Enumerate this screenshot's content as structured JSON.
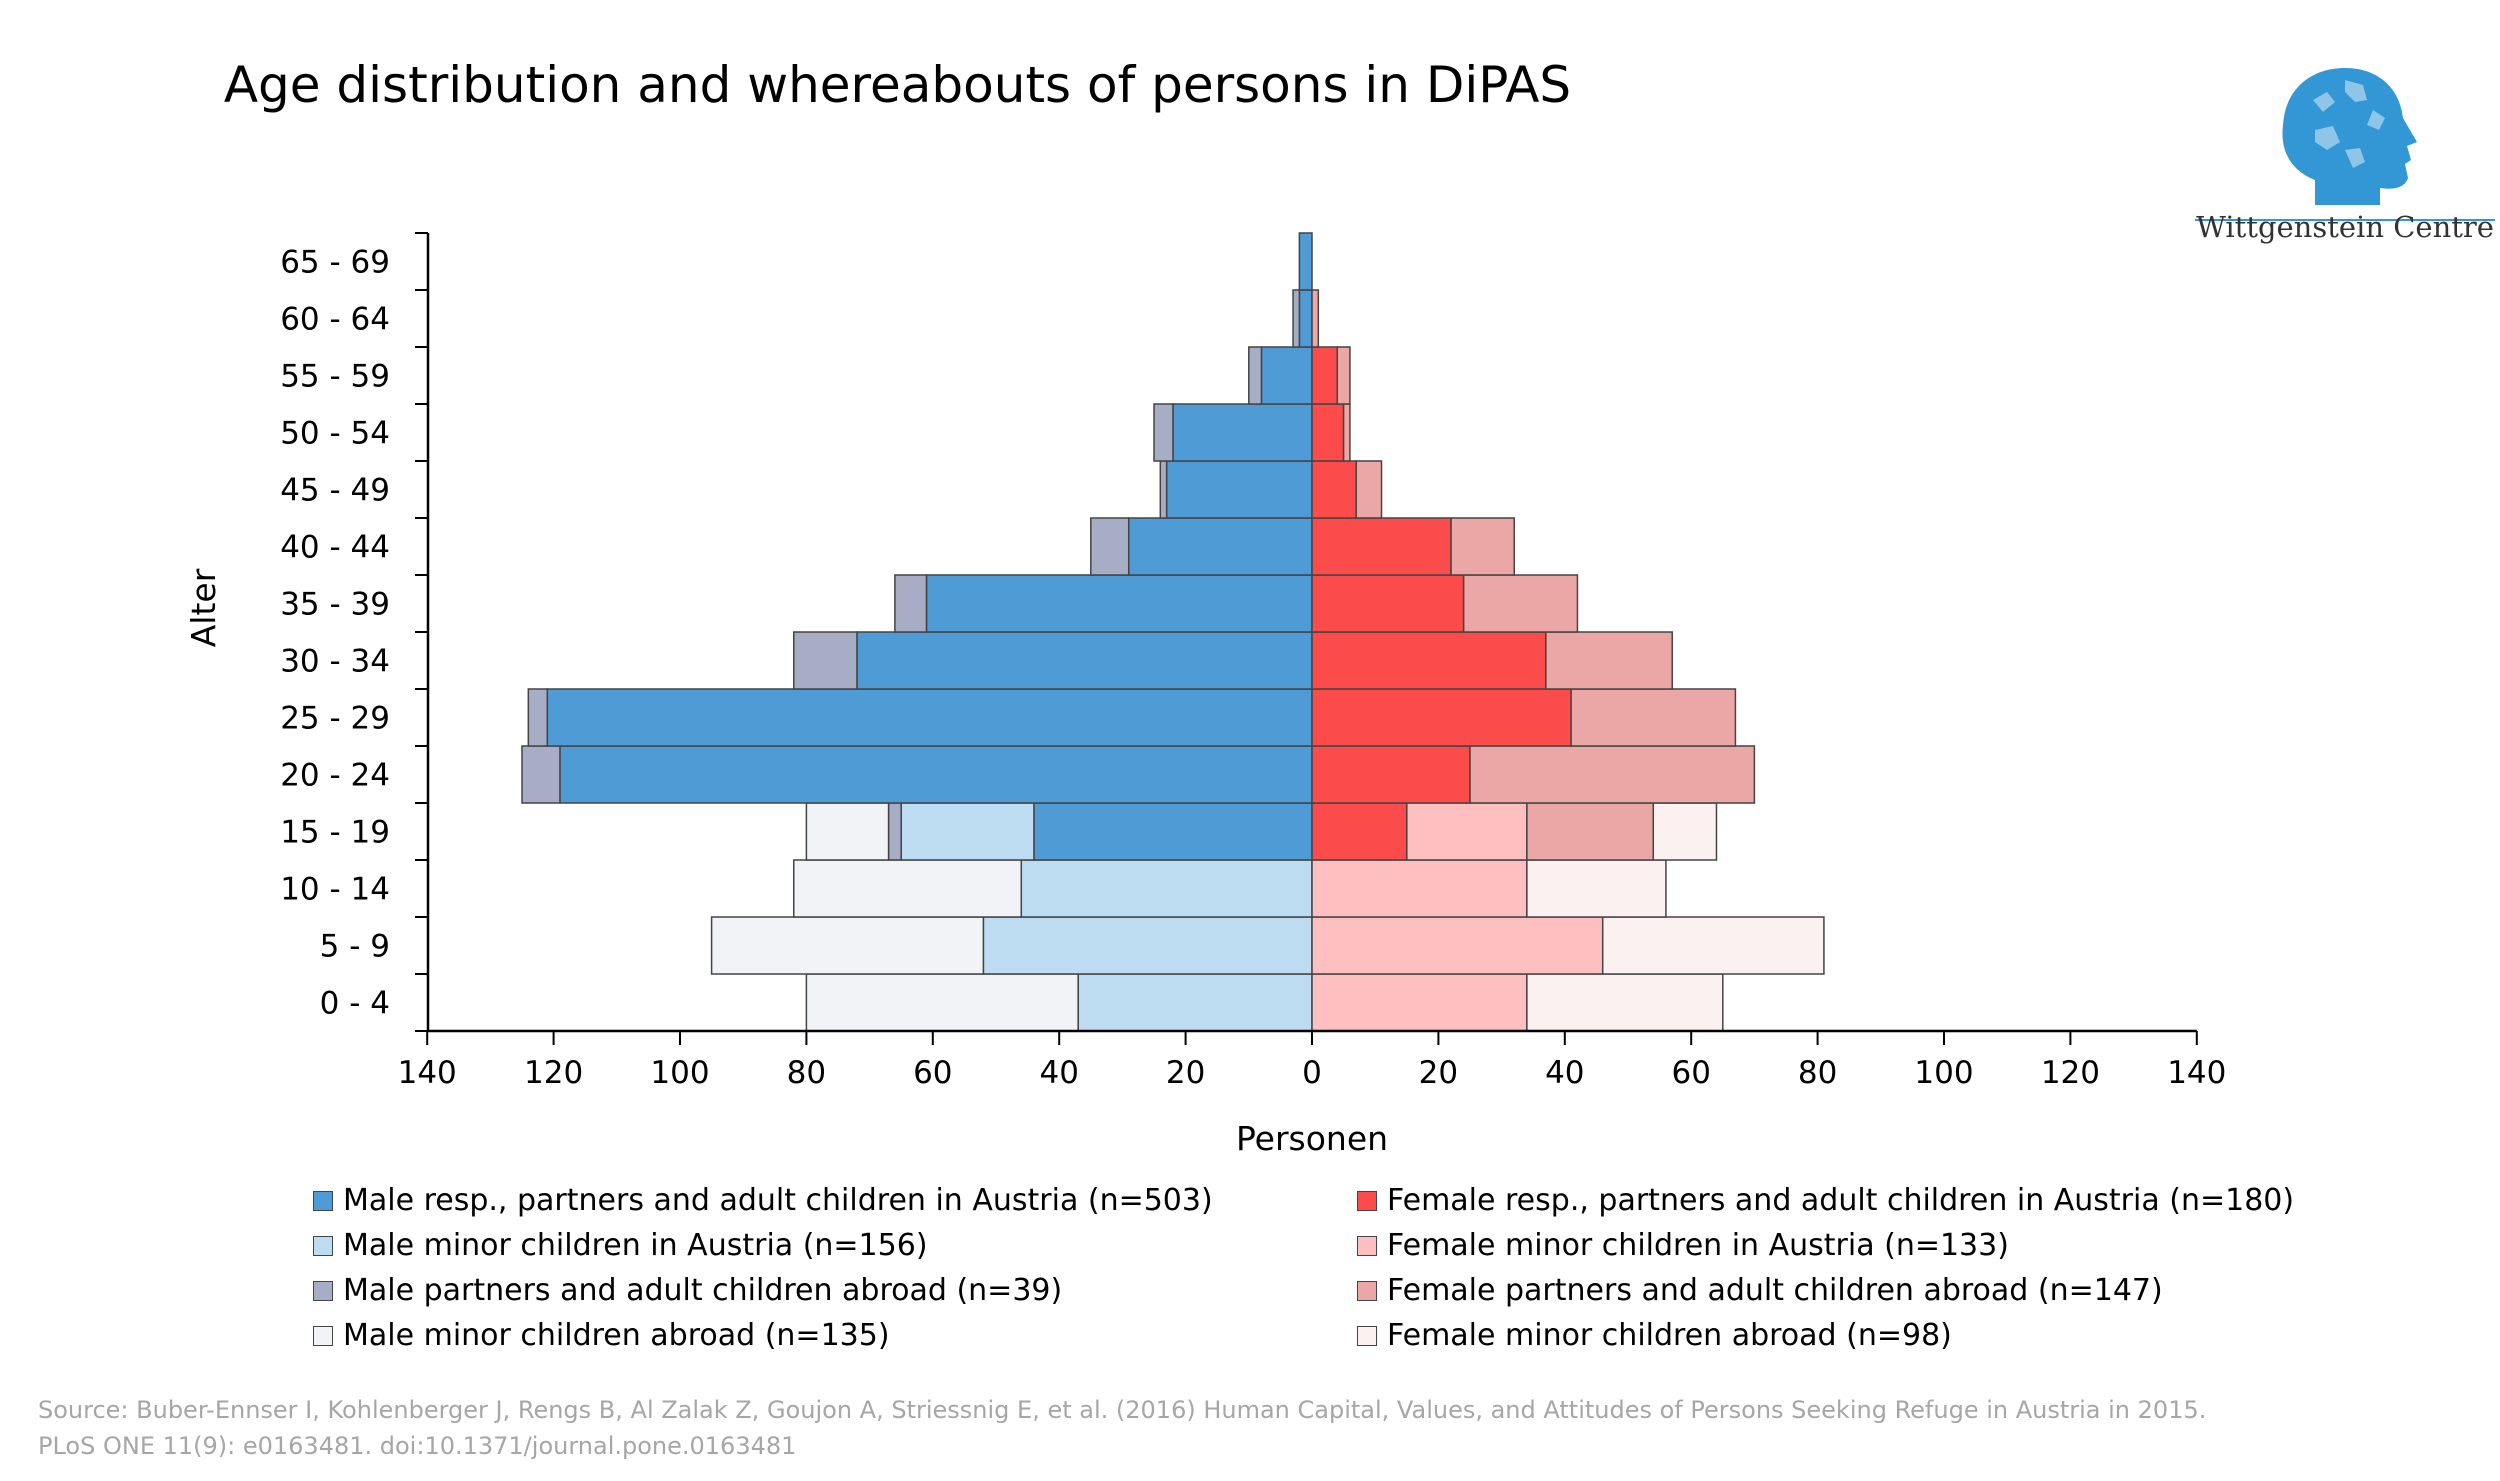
{
  "header": {
    "title": "Age distribution and whereabouts of persons in DiPAS",
    "logo_text": "Wittgenstein Centre"
  },
  "source": {
    "line1": "Source: Buber-Ennser I, Kohlenberger J, Rengs B, Al Zalak Z, Goujon A, Striessnig E, et al. (2016) Human Capital, Values, and Attitudes of Persons Seeking Refuge in Austria in 2015.",
    "line2": "PLoS ONE 11(9): e0163481. doi:10.1371/journal.pone.0163481"
  },
  "colors": {
    "male_resp": "#4f9bd5",
    "male_minor_at": "#bddcf1",
    "male_abroad": "#a6adc4",
    "male_minor_abroad": "#f1f3f7",
    "female_resp": "#fc4b4b",
    "female_minor_at": "#fdbfbf",
    "female_abroad": "#eba6a6",
    "female_minor_abroad": "#fcf1f1",
    "logo": "#3397d5",
    "axis": "#000000"
  },
  "chart_data": {
    "type": "bar",
    "orientation": "horizontal-population-pyramid",
    "categories": [
      "0 - 4",
      "5 - 9",
      "10 - 14",
      "15 - 19",
      "20 - 24",
      "25 - 29",
      "30 - 34",
      "35 - 39",
      "40 - 44",
      "45 - 49",
      "50 - 54",
      "55 - 59",
      "60 - 64",
      "65 - 69"
    ],
    "ylabel": "Alter",
    "xlabel": "Personen",
    "xlim": [
      -140,
      140
    ],
    "xticks": [
      -140,
      -120,
      -100,
      -80,
      -60,
      -40,
      -20,
      0,
      20,
      40,
      60,
      80,
      100,
      120,
      140
    ],
    "xtick_labels": [
      "140",
      "120",
      "100",
      "80",
      "60",
      "40",
      "20",
      "0",
      "20",
      "40",
      "60",
      "80",
      "100",
      "120",
      "140"
    ],
    "stacking": "male series stack to the left of 0 (shown as positive counts), female series stack to the right",
    "series": [
      {
        "key": "male_resp",
        "side": "male",
        "name": "Male resp., partners and adult children in Austria (n=503)",
        "values": [
          0,
          0,
          0,
          44,
          119,
          121,
          72,
          61,
          29,
          23,
          22,
          8,
          2,
          2
        ]
      },
      {
        "key": "male_minor_at",
        "side": "male",
        "name": "Male minor children in Austria (n=156)",
        "values": [
          37,
          52,
          46,
          21,
          0,
          0,
          0,
          0,
          0,
          0,
          0,
          0,
          0,
          0
        ]
      },
      {
        "key": "male_abroad",
        "side": "male",
        "name": "Male partners and adult children abroad (n=39)",
        "values": [
          0,
          0,
          0,
          2,
          6,
          3,
          10,
          5,
          6,
          1,
          3,
          2,
          1,
          0
        ]
      },
      {
        "key": "male_minor_abroad",
        "side": "male",
        "name": "Male minor children abroad (n=135)",
        "values": [
          43,
          43,
          36,
          13,
          0,
          0,
          0,
          0,
          0,
          0,
          0,
          0,
          0,
          0
        ]
      },
      {
        "key": "female_resp",
        "side": "female",
        "name": "Female resp., partners and adult children in Austria (n=180)",
        "values": [
          0,
          0,
          0,
          15,
          25,
          41,
          37,
          24,
          22,
          7,
          5,
          4,
          0,
          0
        ]
      },
      {
        "key": "female_minor_at",
        "side": "female",
        "name": "Female minor children in Austria (n=133)",
        "values": [
          34,
          46,
          34,
          19,
          0,
          0,
          0,
          0,
          0,
          0,
          0,
          0,
          0,
          0
        ]
      },
      {
        "key": "female_abroad",
        "side": "female",
        "name": "Female partners and adult children abroad (n=147)",
        "values": [
          0,
          0,
          0,
          20,
          45,
          26,
          20,
          18,
          10,
          4,
          1,
          2,
          1,
          0
        ]
      },
      {
        "key": "female_minor_abroad",
        "side": "female",
        "name": "Female minor children abroad (n=98)",
        "values": [
          31,
          35,
          22,
          10,
          0,
          0,
          0,
          0,
          0,
          0,
          0,
          0,
          0,
          0
        ]
      }
    ]
  }
}
